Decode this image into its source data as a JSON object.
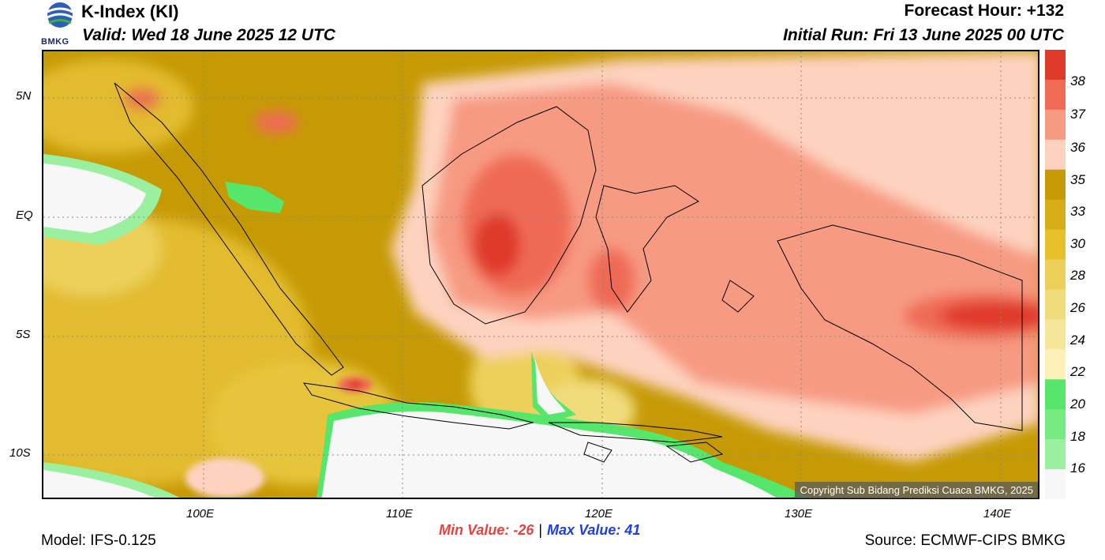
{
  "header": {
    "title": "K-Index (KI)",
    "valid": "Valid: Wed 18 June 2025 12 UTC",
    "forecast_hour": "Forecast Hour: +132",
    "initial_run": "Initial Run: Fri 13 June 2025 00 UTC",
    "logo_text": "BMKG"
  },
  "map": {
    "lat_labels": [
      "5N",
      "EQ",
      "5S",
      "10S"
    ],
    "lon_labels": [
      "100E",
      "110E",
      "120E",
      "130E",
      "140E"
    ],
    "copyright": "Copyright Sub Bidang Prediksi Cuaca BMKG, 2025",
    "background_color": "#c69a05",
    "palette": {
      "white": "#f7f7f7",
      "light_green": "#9af09f",
      "green": "#55e66b",
      "pale_yellow": "#f8ea9b",
      "yellow": "#e9c83c",
      "gold": "#d7ad17",
      "dark_gold": "#c69a05",
      "peach": "#fdd3c0",
      "salmon": "#f79a82",
      "coral": "#ef6b55",
      "red": "#e03a2a"
    }
  },
  "colorbar": {
    "labels": [
      "38",
      "37",
      "36",
      "35",
      "33",
      "30",
      "28",
      "26",
      "24",
      "22",
      "20",
      "18",
      "16"
    ],
    "colors": [
      "#e03a2a",
      "#ef6b55",
      "#f79a82",
      "#fdd3c0",
      "#c69a05",
      "#d7ad17",
      "#e6bf2a",
      "#ecd05a",
      "#f1dc7b",
      "#f6e69a",
      "#fbf1b8",
      "#55e66b",
      "#77eb82",
      "#9af09f",
      "#f7f7f7"
    ]
  },
  "footer": {
    "min_value": "Min Value: -26",
    "separator": "|",
    "max_value": "Max Value:  41",
    "model": "Model: IFS-0.125",
    "source": "Source: ECMWF-CIPS BMKG"
  }
}
